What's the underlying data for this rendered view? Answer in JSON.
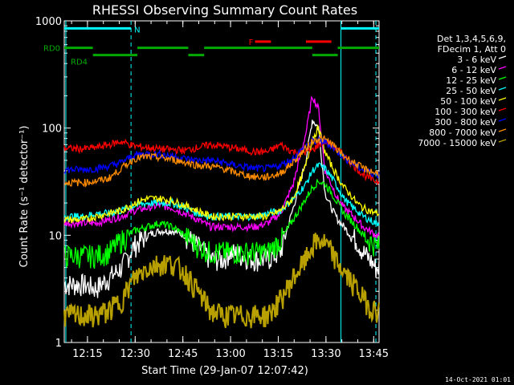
{
  "chart_data": {
    "type": "line",
    "title": "RHESSI Observing Summary Count Rates",
    "xlabel": "Start Time (29-Jan-07 12:07:42)",
    "ylabel": "Count Rate (s⁻¹ detector⁻¹)",
    "y_scale": "log",
    "ylim": [
      1,
      1000
    ],
    "xlim_minutes": [
      0,
      99
    ],
    "x_ticks": [
      {
        "m": 7.3,
        "label": "12:15"
      },
      {
        "m": 22.3,
        "label": "12:30"
      },
      {
        "m": 37.3,
        "label": "12:45"
      },
      {
        "m": 52.3,
        "label": "13:00"
      },
      {
        "m": 67.3,
        "label": "13:15"
      },
      {
        "m": 82.3,
        "label": "13:30"
      },
      {
        "m": 97.3,
        "label": "13:45"
      }
    ],
    "y_ticks": [
      {
        "v": 1,
        "label": "1"
      },
      {
        "v": 10,
        "label": "10"
      },
      {
        "v": 100,
        "label": "100"
      },
      {
        "v": 1000,
        "label": "1000"
      }
    ],
    "legend_header": [
      "Det 1,3,4,5,6,9,",
      "FDecim 1, Att 0"
    ],
    "series": [
      {
        "name": "3 - 6 keV",
        "color": "#ffffff",
        "x": [
          0,
          6,
          10,
          14,
          18,
          22,
          26,
          30,
          34,
          38,
          42,
          46,
          50,
          52,
          56,
          60,
          64,
          68,
          72,
          76,
          78,
          80,
          82,
          84,
          86,
          88,
          90,
          92,
          94,
          96,
          98
        ],
        "y": [
          3.5,
          3.5,
          3.2,
          4,
          5,
          8,
          10,
          11,
          11,
          10,
          8,
          6,
          6,
          7,
          6.5,
          6,
          6,
          7,
          18,
          50,
          120,
          100,
          25,
          18,
          14,
          12,
          10,
          9,
          7,
          6,
          5
        ]
      },
      {
        "name": "6 - 12 keV",
        "color": "#ff00ff",
        "x": [
          0,
          6,
          10,
          14,
          18,
          22,
          26,
          30,
          34,
          38,
          42,
          46,
          50,
          52,
          56,
          60,
          64,
          68,
          72,
          76,
          78,
          80,
          82,
          84,
          86,
          88,
          90,
          92,
          94,
          96,
          98
        ],
        "y": [
          13,
          13,
          13,
          14,
          15,
          17,
          18,
          19,
          18,
          16,
          14,
          12,
          12,
          12,
          12,
          12,
          13,
          16,
          30,
          90,
          200,
          150,
          40,
          30,
          22,
          18,
          16,
          14,
          12,
          11,
          10
        ]
      },
      {
        "name": "12 - 25 keV",
        "color": "#00ff00",
        "x": [
          0,
          6,
          10,
          14,
          18,
          22,
          26,
          30,
          34,
          38,
          42,
          46,
          50,
          52,
          56,
          60,
          64,
          68,
          72,
          76,
          78,
          80,
          82,
          84,
          86,
          88,
          90,
          92,
          94,
          96,
          98
        ],
        "y": [
          6.5,
          6.5,
          6.5,
          7,
          9,
          11,
          12,
          13,
          12,
          10,
          8,
          7,
          7,
          7,
          7,
          7,
          7,
          9,
          14,
          22,
          28,
          32,
          30,
          25,
          20,
          16,
          14,
          12,
          10,
          9,
          8
        ]
      },
      {
        "name": "25 - 50 keV",
        "color": "#00ffff",
        "x": [
          0,
          6,
          10,
          14,
          18,
          22,
          26,
          30,
          34,
          38,
          42,
          46,
          50,
          52,
          56,
          60,
          64,
          68,
          72,
          76,
          78,
          80,
          82,
          84,
          86,
          88,
          90,
          92,
          94,
          96,
          98
        ],
        "y": [
          15,
          15,
          16,
          16,
          17,
          19,
          20,
          20,
          20,
          18,
          16,
          15,
          15,
          15,
          15,
          15,
          16,
          17,
          22,
          30,
          40,
          45,
          42,
          35,
          28,
          22,
          19,
          17,
          15,
          14,
          13
        ]
      },
      {
        "name": "50 - 100 keV",
        "color": "#ffff00",
        "x": [
          0,
          6,
          10,
          14,
          18,
          22,
          26,
          30,
          34,
          38,
          42,
          46,
          50,
          52,
          56,
          60,
          64,
          68,
          72,
          76,
          78,
          80,
          82,
          84,
          86,
          88,
          90,
          92,
          94,
          96,
          98
        ],
        "y": [
          14,
          14,
          15,
          16,
          17,
          20,
          22,
          22,
          21,
          19,
          17,
          15,
          15,
          15,
          15,
          15,
          15,
          17,
          22,
          45,
          80,
          100,
          60,
          45,
          35,
          28,
          24,
          20,
          18,
          17,
          16
        ]
      },
      {
        "name": "100 - 300 keV",
        "color": "#ff0000",
        "x": [
          0,
          6,
          10,
          14,
          18,
          22,
          26,
          30,
          34,
          38,
          42,
          46,
          50,
          52,
          56,
          60,
          64,
          68,
          72,
          76,
          78,
          80,
          82,
          84,
          86,
          88,
          90,
          92,
          94,
          96,
          98
        ],
        "y": [
          65,
          64,
          66,
          70,
          75,
          68,
          66,
          64,
          63,
          62,
          66,
          70,
          68,
          66,
          63,
          60,
          60,
          70,
          60,
          60,
          62,
          70,
          75,
          70,
          62,
          55,
          48,
          42,
          37,
          34,
          32
        ]
      },
      {
        "name": "300 - 800 keV",
        "color": "#0000ff",
        "x": [
          0,
          6,
          10,
          14,
          18,
          22,
          26,
          30,
          34,
          38,
          42,
          46,
          50,
          52,
          56,
          60,
          64,
          68,
          72,
          76,
          78,
          80,
          82,
          84,
          86,
          88,
          90,
          92,
          94,
          96,
          98
        ],
        "y": [
          41,
          41,
          42,
          44,
          48,
          56,
          58,
          57,
          55,
          52,
          50,
          50,
          48,
          46,
          44,
          42,
          42,
          45,
          52,
          68,
          75,
          76,
          74,
          68,
          60,
          54,
          48,
          44,
          41,
          39,
          37
        ]
      },
      {
        "name": "800 - 7000 keV",
        "color": "#ff8c00",
        "x": [
          0,
          6,
          10,
          14,
          18,
          22,
          26,
          30,
          34,
          38,
          42,
          46,
          50,
          52,
          56,
          60,
          64,
          68,
          72,
          76,
          78,
          80,
          82,
          84,
          86,
          88,
          90,
          92,
          94,
          96,
          98
        ],
        "y": [
          31,
          31,
          32,
          34,
          42,
          52,
          54,
          53,
          51,
          48,
          45,
          44,
          42,
          40,
          37,
          35,
          35,
          38,
          48,
          65,
          75,
          80,
          78,
          72,
          62,
          55,
          50,
          46,
          42,
          40,
          38
        ]
      },
      {
        "name": "7000 - 15000 keV",
        "color": "#b8a000",
        "x": [
          0,
          6,
          10,
          14,
          18,
          22,
          26,
          30,
          34,
          38,
          42,
          46,
          50,
          52,
          56,
          60,
          64,
          68,
          72,
          76,
          78,
          80,
          82,
          84,
          86,
          88,
          90,
          92,
          94,
          96,
          98
        ],
        "y": [
          1.8,
          1.8,
          1.8,
          2,
          2.5,
          4,
          5,
          5.5,
          5.5,
          4.5,
          3,
          2,
          1.8,
          1.8,
          1.8,
          1.8,
          1.8,
          2.5,
          4,
          6,
          8,
          9,
          8.5,
          7,
          5.5,
          4.5,
          3.8,
          3.2,
          2.6,
          2.2,
          2
        ]
      }
    ],
    "status_bars": [
      {
        "name": "N",
        "color": "#00ffff",
        "y_level": 850,
        "segments": [
          [
            0,
            21
          ]
        ],
        "label": "N"
      },
      {
        "name": "N",
        "color": "#00ffff",
        "y_level": 850,
        "segments": [
          [
            87,
            99
          ]
        ],
        "label": ""
      },
      {
        "name": "RD0",
        "color": "#00aa00",
        "y_level": 560,
        "segments": [
          [
            0,
            9
          ],
          [
            23,
            39
          ],
          [
            44,
            78
          ],
          [
            86,
            99
          ]
        ],
        "label": "RD0"
      },
      {
        "name": "RD4",
        "color": "#00aa00",
        "y_level": 480,
        "segments": [
          [
            9,
            23
          ],
          [
            39,
            44
          ],
          [
            78,
            86
          ]
        ],
        "label": "RD4"
      },
      {
        "name": "F",
        "color": "#ff0000",
        "y_level": 640,
        "segments": [
          [
            60,
            65
          ],
          [
            76,
            84
          ]
        ],
        "label": "F"
      }
    ],
    "vertical_lines": [
      {
        "m": 0.5,
        "color": "#00ffff",
        "dashed": false
      },
      {
        "m": 21,
        "color": "#00ffff",
        "dashed": true
      },
      {
        "m": 87,
        "color": "#00ffff",
        "dashed": false
      },
      {
        "m": 98,
        "color": "#00ffff",
        "dashed": true
      }
    ]
  },
  "footer": {
    "timestamp": "14-Oct-2021 01:01"
  }
}
